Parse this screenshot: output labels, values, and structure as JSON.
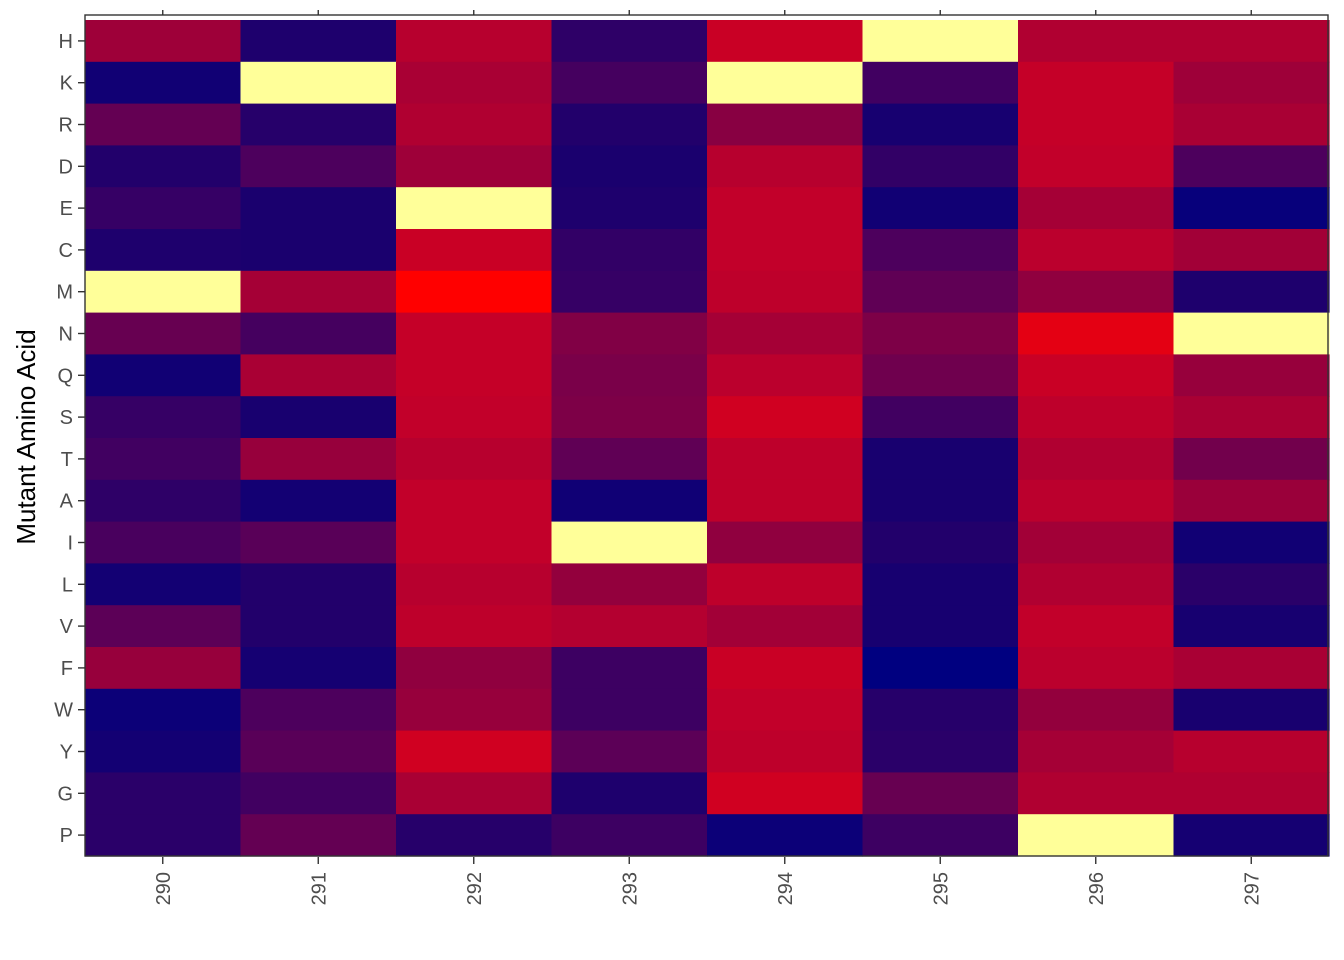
{
  "chart_data": {
    "type": "heatmap",
    "title": "",
    "xlabel": "",
    "ylabel": "Mutant Amino Acid",
    "x_categories": [
      "290",
      "291",
      "292",
      "293",
      "294",
      "295",
      "296",
      "297"
    ],
    "y_categories": [
      "H",
      "K",
      "R",
      "D",
      "E",
      "C",
      "M",
      "N",
      "Q",
      "S",
      "T",
      "A",
      "I",
      "L",
      "V",
      "F",
      "W",
      "Y",
      "G",
      "P"
    ],
    "color_scale": {
      "low": "#000080",
      "mid": "#ff0000",
      "high": "#ffff99",
      "note": "wild-type residue shown as light yellow"
    },
    "values": [
      [
        0.5,
        0.16,
        0.57,
        0.2,
        0.62,
        1.0,
        0.55,
        0.55
      ],
      [
        0.1,
        1.0,
        0.53,
        0.26,
        1.0,
        0.25,
        0.61,
        0.5
      ],
      [
        0.34,
        0.18,
        0.55,
        0.17,
        0.44,
        0.13,
        0.61,
        0.53
      ],
      [
        0.17,
        0.28,
        0.5,
        0.15,
        0.57,
        0.21,
        0.6,
        0.28
      ],
      [
        0.22,
        0.15,
        1.0,
        0.16,
        0.6,
        0.1,
        0.52,
        0.04
      ],
      [
        0.16,
        0.15,
        0.62,
        0.21,
        0.6,
        0.28,
        0.58,
        0.51
      ],
      [
        1.0,
        0.52,
        0.78,
        0.22,
        0.59,
        0.33,
        0.46,
        0.16
      ],
      [
        0.35,
        0.26,
        0.61,
        0.42,
        0.52,
        0.41,
        0.7,
        1.0
      ],
      [
        0.1,
        0.53,
        0.61,
        0.4,
        0.58,
        0.37,
        0.62,
        0.48
      ],
      [
        0.22,
        0.14,
        0.6,
        0.41,
        0.64,
        0.25,
        0.59,
        0.53
      ],
      [
        0.25,
        0.48,
        0.57,
        0.33,
        0.59,
        0.14,
        0.55,
        0.38
      ],
      [
        0.2,
        0.11,
        0.6,
        0.09,
        0.59,
        0.14,
        0.58,
        0.49
      ],
      [
        0.27,
        0.31,
        0.6,
        1.0,
        0.46,
        0.17,
        0.51,
        0.1
      ],
      [
        0.11,
        0.17,
        0.57,
        0.47,
        0.59,
        0.13,
        0.55,
        0.19
      ],
      [
        0.32,
        0.17,
        0.59,
        0.56,
        0.51,
        0.13,
        0.6,
        0.13
      ],
      [
        0.48,
        0.12,
        0.46,
        0.24,
        0.62,
        0.0,
        0.58,
        0.53
      ],
      [
        0.07,
        0.28,
        0.48,
        0.24,
        0.6,
        0.18,
        0.47,
        0.14
      ],
      [
        0.11,
        0.31,
        0.64,
        0.32,
        0.59,
        0.19,
        0.52,
        0.57
      ],
      [
        0.19,
        0.25,
        0.53,
        0.16,
        0.64,
        0.35,
        0.55,
        0.55
      ],
      [
        0.19,
        0.34,
        0.18,
        0.24,
        0.07,
        0.24,
        1.0,
        0.12
      ]
    ],
    "grid": false,
    "legend": "none",
    "panel_border": "#333333"
  }
}
